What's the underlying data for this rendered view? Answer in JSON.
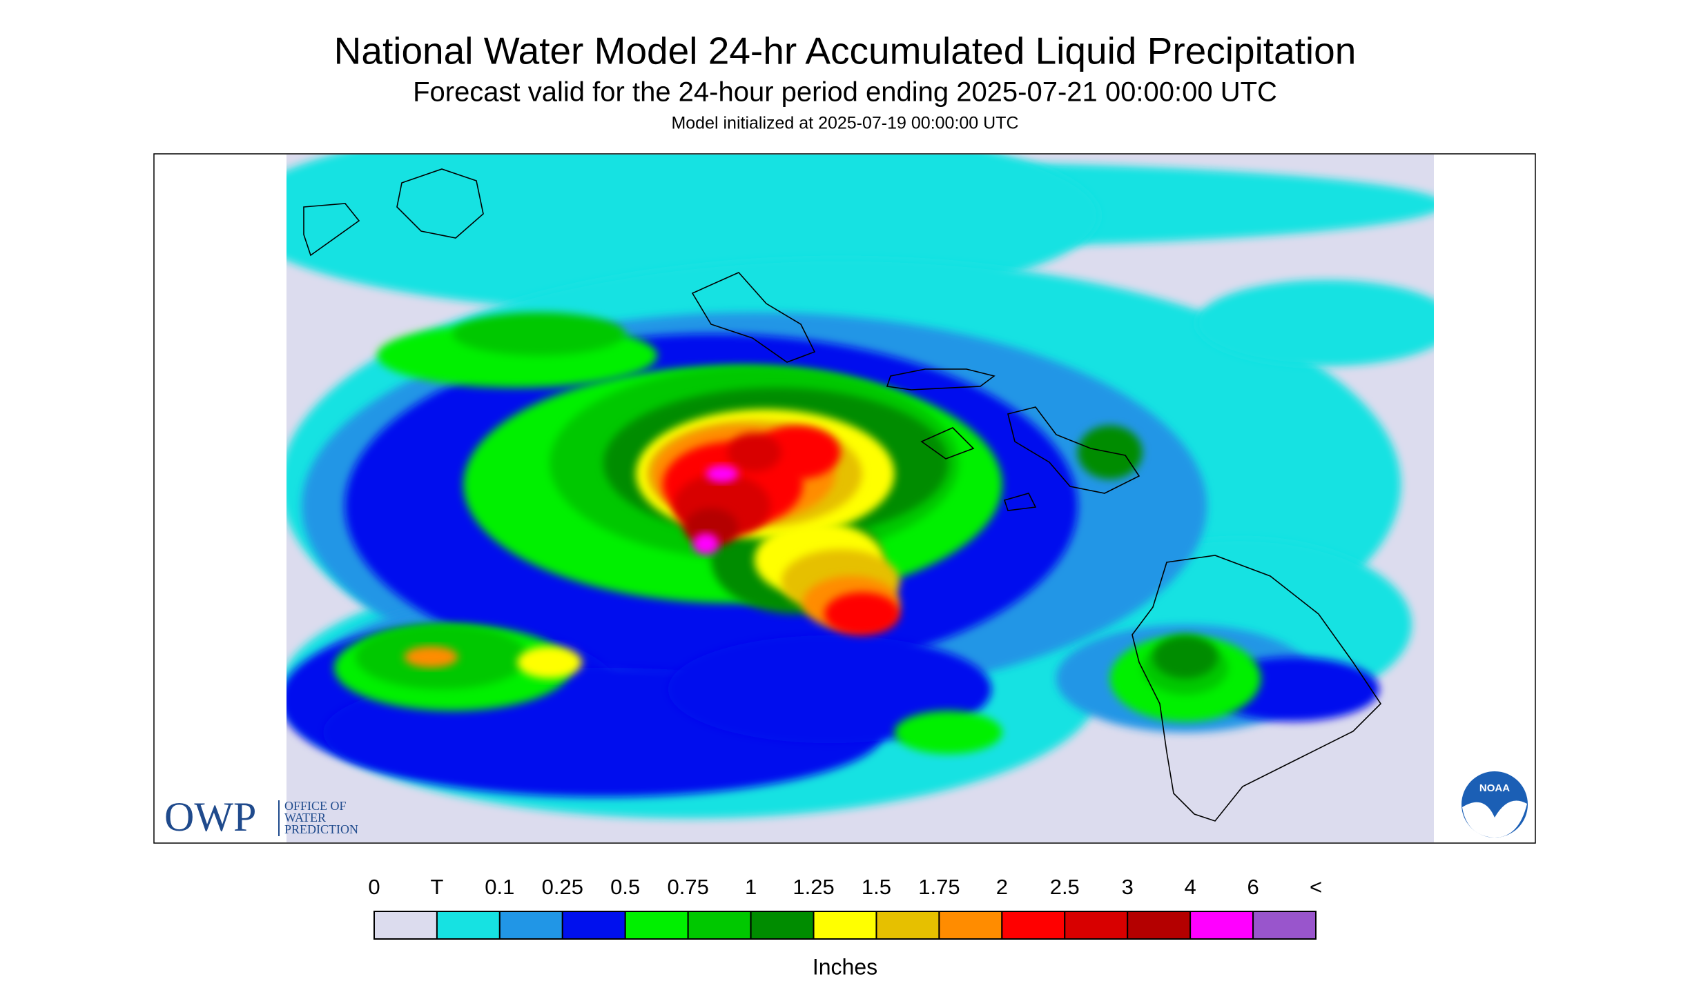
{
  "header": {
    "title": "National Water Model 24-hr Accumulated Liquid Precipitation",
    "subtitle": "Forecast valid for the 24-hour period ending 2025-07-21 00:00:00 UTC",
    "note": "Model initialized at 2025-07-19 00:00:00 UTC"
  },
  "legend": {
    "labels": [
      "0",
      "T",
      "0.1",
      "0.25",
      "0.5",
      "0.75",
      "1",
      "1.25",
      "1.5",
      "1.75",
      "2",
      "2.5",
      "3",
      "4",
      "6",
      "<"
    ],
    "colors": [
      "#dcdcee",
      "#16e2e2",
      "#2196e6",
      "#0010ee",
      "#00f000",
      "#00c800",
      "#008c00",
      "#ffff00",
      "#e6c000",
      "#ff8c00",
      "#ff0000",
      "#d80000",
      "#b40000",
      "#ff00ff",
      "#9955cc"
    ],
    "unit": "Inches"
  },
  "logos": {
    "owp": "OWP",
    "owp_lines": [
      "OFFICE OF",
      "WATER",
      "PREDICTION"
    ],
    "noaa": "NOAA"
  }
}
